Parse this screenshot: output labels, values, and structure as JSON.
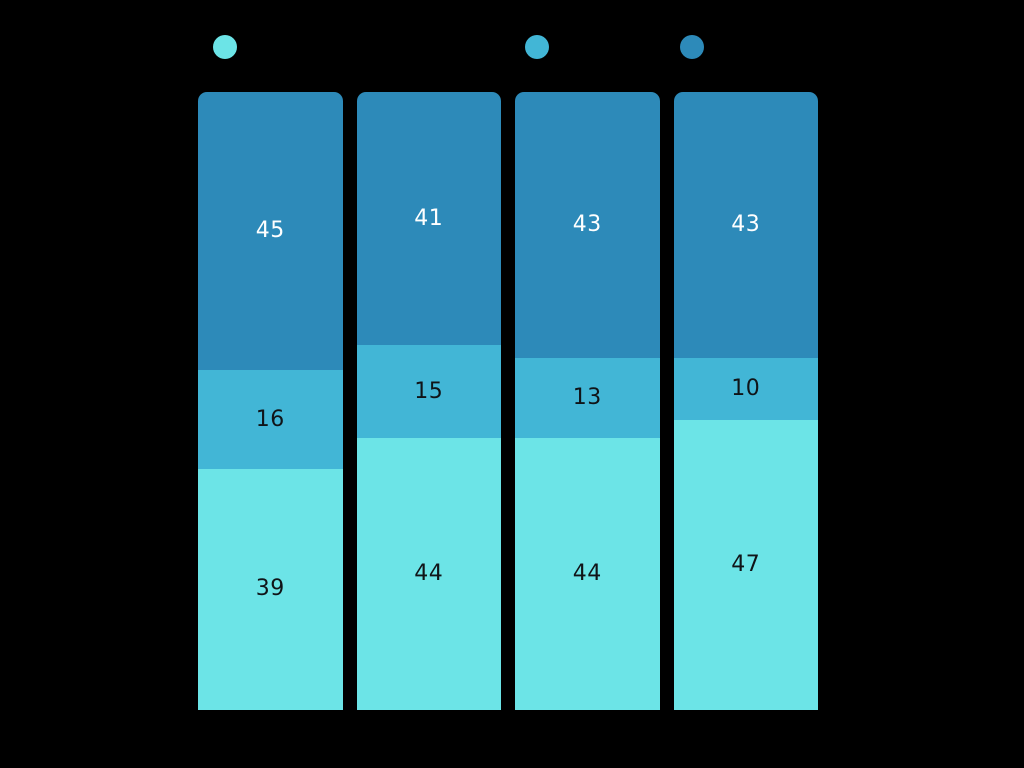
{
  "background_color": "#000000",
  "legend": {
    "position": "top",
    "dots": [
      {
        "icon": "circle-dot-icon",
        "color": "#6CE4E7",
        "label": ""
      },
      {
        "icon": "circle-dot-icon",
        "color": "#42B6D6",
        "label": ""
      },
      {
        "icon": "circle-dot-icon",
        "color": "#2D8AB9",
        "label": ""
      }
    ]
  },
  "chart_data": {
    "type": "bar",
    "subtype": "100-percent-stacked-vertical",
    "title": "",
    "xlabel": "",
    "ylabel": "",
    "categories": [
      "",
      "",
      "",
      ""
    ],
    "series": [
      {
        "name": "bottom-light-cyan",
        "color": "#6CE4E7",
        "label_color": "#101418",
        "values": [
          39,
          44,
          44,
          47
        ]
      },
      {
        "name": "middle-medium-cyan",
        "color": "#42B6D6",
        "label_color": "#101418",
        "values": [
          16,
          15,
          13,
          10
        ]
      },
      {
        "name": "top-dark-blue",
        "color": "#2D8AB9",
        "label_color": "#FFFFFF",
        "values": [
          45,
          41,
          43,
          43
        ]
      }
    ],
    "stack_totals": [
      100,
      100,
      100,
      100
    ],
    "ylim": [
      0,
      100
    ],
    "grid": false,
    "legend_position": "top",
    "bar_labels_shown": true
  }
}
